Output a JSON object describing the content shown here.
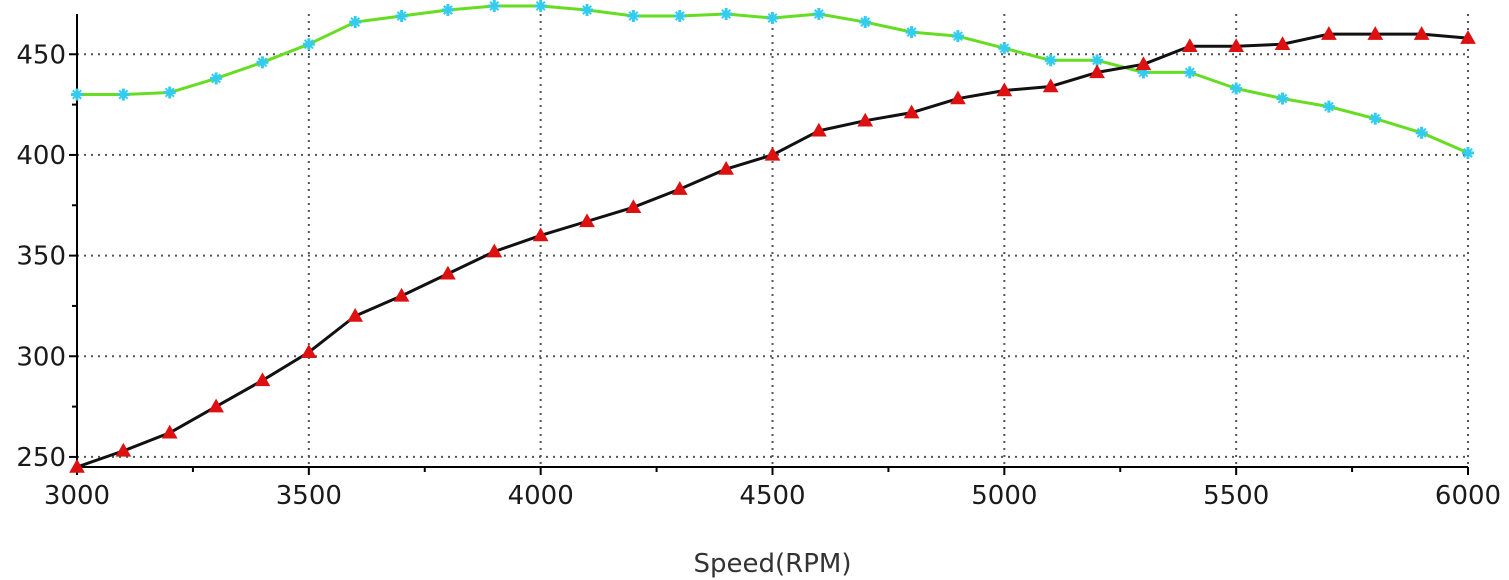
{
  "chart_data": {
    "type": "line",
    "title": "",
    "xlabel": "Speed(RPM)",
    "ylabel": "",
    "xlim": [
      3000,
      6000
    ],
    "ylim": [
      245,
      470
    ],
    "x_ticks": [
      3000,
      3500,
      4000,
      4500,
      5000,
      5500,
      6000
    ],
    "x_tick_labels": [
      "3000",
      "3500",
      "4000",
      "4500",
      "5000",
      "5500",
      "6000"
    ],
    "y_ticks": [
      250,
      300,
      350,
      400,
      450
    ],
    "y_tick_labels": [
      "250",
      "300",
      "350",
      "400",
      "450"
    ],
    "grid": true,
    "legend": "none",
    "x": [
      3000,
      3100,
      3200,
      3300,
      3400,
      3500,
      3600,
      3700,
      3800,
      3900,
      4000,
      4100,
      4200,
      4300,
      4400,
      4500,
      4600,
      4700,
      4800,
      4900,
      5000,
      5100,
      5200,
      5300,
      5400,
      5500,
      5600,
      5700,
      5800,
      5900,
      6000
    ],
    "series": [
      {
        "color": "#66dd22",
        "marker": "cross",
        "marker_color": "#33ccee",
        "values": [
          430,
          430,
          431,
          438,
          446,
          455,
          466,
          469,
          472,
          474,
          474,
          472,
          469,
          469,
          470,
          468,
          470,
          466,
          461,
          459,
          453,
          447,
          447,
          441,
          441,
          433,
          428,
          424,
          418,
          411,
          401
        ]
      },
      {
        "color": "#111111",
        "marker": "triangle",
        "marker_color": "#dd1111",
        "values": [
          245,
          253,
          262,
          275,
          288,
          302,
          320,
          330,
          341,
          352,
          360,
          367,
          374,
          383,
          393,
          400,
          412,
          417,
          421,
          428,
          432,
          434,
          441,
          445,
          454,
          454,
          455,
          460,
          460,
          460,
          458
        ]
      }
    ]
  }
}
